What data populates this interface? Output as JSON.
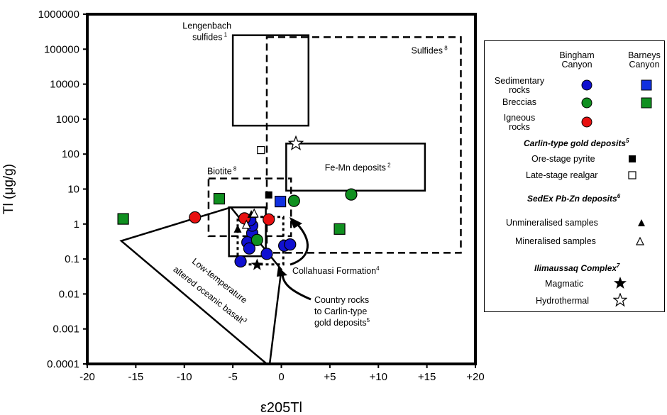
{
  "chart_data": {
    "type": "scatter",
    "xlabel": "ε205Tl",
    "ylabel": "Tl (μg/g)",
    "xlim": [
      -20,
      20
    ],
    "ylim": [
      0.0001,
      1000000
    ],
    "yscale": "log",
    "x_ticks": [
      "-20",
      "-15",
      "-10",
      "-5",
      "0",
      "+5",
      "+10",
      "+15",
      "+20"
    ],
    "y_ticks": [
      "0.0001",
      "0.001",
      "0.01",
      "0.1",
      "1",
      "10",
      "100",
      "1000",
      "10000",
      "100000",
      "1000000"
    ],
    "fields": [
      {
        "label": "Lengenbach sulfides",
        "sup": "1",
        "style": "solid",
        "x": [
          -5,
          2.8
        ],
        "y": [
          650,
          250000
        ]
      },
      {
        "label": "Sulfides",
        "sup": "8",
        "style": "dashed",
        "x": [
          -1.5,
          18.5
        ],
        "y": [
          0.15,
          220000
        ]
      },
      {
        "label": "Fe-Mn deposits",
        "sup": "2",
        "style": "solid",
        "x": [
          0.5,
          14.8
        ],
        "y": [
          9,
          200
        ]
      },
      {
        "label": "Biotite",
        "sup": "8",
        "style": "dashed",
        "x": [
          -7.5,
          1
        ],
        "y": [
          0.45,
          20
        ]
      },
      {
        "label": "Collahuasi Formation",
        "sup": "4",
        "style": "solid",
        "x": [
          -5.4,
          -1.6
        ],
        "y": [
          0.12,
          3
        ]
      },
      {
        "label": "Country rocks to Carlin-type gold deposits",
        "sup": "5",
        "style": "dotted",
        "x": [
          -4.5,
          0.2
        ],
        "y": [
          0.07,
          1.6
        ]
      }
    ],
    "polygon": {
      "label": "Low-temperature altered oceanic basalt",
      "sup": "3",
      "points": [
        [
          -16.5,
          0.33
        ],
        [
          -5.2,
          3
        ],
        [
          0,
          0.05
        ],
        [
          -1.2,
          0.0001
        ],
        [
          -1.5,
          0.0001
        ]
      ]
    },
    "series": [
      {
        "name": "Bingham Canyon Sedimentary rocks",
        "marker": "circle",
        "color": "#1010d0",
        "points": [
          [
            -3,
            0.55
          ],
          [
            -3,
            0.9
          ],
          [
            -3.2,
            1.3
          ],
          [
            -3.5,
            0.3
          ],
          [
            -3.3,
            0.2
          ],
          [
            -4.2,
            0.085
          ],
          [
            -1.5,
            0.14
          ],
          [
            0.3,
            0.24
          ],
          [
            0.9,
            0.26
          ]
        ]
      },
      {
        "name": "Bingham Canyon Breccias",
        "marker": "circle",
        "color": "#109020",
        "points": [
          [
            -2.5,
            0.35
          ],
          [
            1.3,
            4.6
          ],
          [
            7.2,
            7
          ]
        ]
      },
      {
        "name": "Bingham Canyon Igneous rocks",
        "marker": "circle",
        "color": "#e81010",
        "points": [
          [
            -8.9,
            1.55
          ],
          [
            -3.8,
            1.45
          ],
          [
            -1.3,
            1.35
          ]
        ]
      },
      {
        "name": "Barneys Canyon Sedimentary rocks",
        "marker": "square",
        "color": "#1030e0",
        "points": [
          [
            -0.1,
            4.4
          ]
        ]
      },
      {
        "name": "Barneys Canyon Breccias",
        "marker": "square",
        "color": "#109020",
        "points": [
          [
            -16.3,
            1.4
          ],
          [
            -6.4,
            5.3
          ],
          [
            6,
            0.72
          ]
        ]
      },
      {
        "name": "Ore-stage pyrite",
        "marker": "small-square-filled",
        "color": "#000000",
        "points": [
          [
            -1.3,
            6.8
          ]
        ]
      },
      {
        "name": "Late-stage realgar",
        "marker": "small-square-open",
        "color": "#000000",
        "points": [
          [
            -2.1,
            130
          ]
        ]
      },
      {
        "name": "Unmineralised samples",
        "marker": "triangle-filled",
        "color": "#000000",
        "points": [
          [
            -4.5,
            0.72
          ],
          [
            -3.1,
            1.9
          ]
        ]
      },
      {
        "name": "Mineralised samples",
        "marker": "triangle-open",
        "color": "#000000",
        "points": [
          [
            -2.8,
            2
          ],
          [
            -3.6,
            0.95
          ]
        ]
      },
      {
        "name": "Magmatic",
        "marker": "star-filled",
        "color": "#000000",
        "points": [
          [
            -2.5,
            0.068
          ]
        ]
      },
      {
        "name": "Hydrothermal",
        "marker": "star-open",
        "color": "#000000",
        "points": [
          [
            1.5,
            200
          ]
        ]
      }
    ],
    "annotations": [
      {
        "text": "Low-temperature",
        "line": 1
      },
      {
        "text": "altered oceanic basalt",
        "line": 2,
        "sup": "3"
      },
      {
        "text": "Collahuasi Formation",
        "sup": "4"
      },
      {
        "text": "Country rocks",
        "line": 1
      },
      {
        "text": "to Carlin-type",
        "line": 2
      },
      {
        "text": "gold deposits",
        "line": 3,
        "sup": "5"
      }
    ]
  },
  "legend": {
    "col_bingham": [
      "Bingham",
      "Canyon"
    ],
    "col_barneys": [
      "Barneys",
      "Canyon"
    ],
    "row_sed": [
      "Sedimentary",
      "rocks"
    ],
    "row_breccias": "Breccias",
    "row_igneous": [
      "Igneous",
      "rocks"
    ],
    "carlin_heading": "Carlin-type gold deposits",
    "carlin_sup": "5",
    "ore_stage": "Ore-stage pyrite",
    "late_stage": "Late-stage realgar",
    "sedex_heading": "SedEx Pb-Zn deposits",
    "sedex_sup": "6",
    "unmin": "Unmineralised samples",
    "min": "Mineralised samples",
    "ilim_heading": "Ilimaussaq Complex",
    "ilim_sup": "7",
    "magmatic": "Magmatic",
    "hydrothermal": "Hydrothermal",
    "colors": {
      "blue": "#1010d0",
      "green": "#109020",
      "red": "#e81010",
      "square_blue": "#1030e0"
    }
  }
}
